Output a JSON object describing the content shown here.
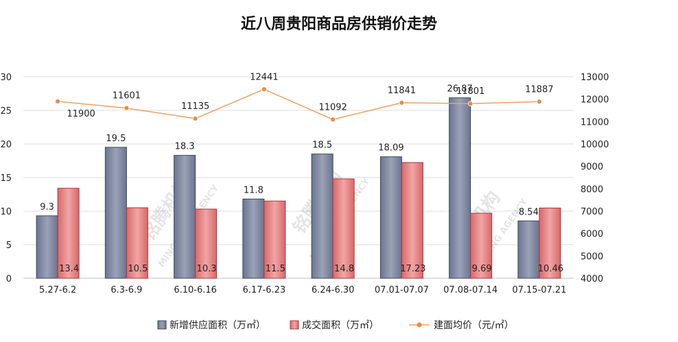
{
  "chart_data": {
    "type": "bar",
    "title": "近八周贵阳商品房供销价走势",
    "categories": [
      "5.27-6.2",
      "6.3-6.9",
      "6.10-6.16",
      "6.17-6.23",
      "6.24-6.30",
      "07.01-07.07",
      "07.08-07.14",
      "07.15-07.21"
    ],
    "y_left": {
      "min": 0,
      "max": 30,
      "ticks": [
        "0",
        "5",
        "10",
        "15",
        "20",
        "25",
        "30"
      ]
    },
    "y_right": {
      "min": 4000,
      "max": 13000,
      "ticks": [
        "4000",
        "5000",
        "6000",
        "7000",
        "8000",
        "9000",
        "10000",
        "11000",
        "12000",
        "13000"
      ]
    },
    "series": [
      {
        "name": "新增供应面积（万㎡）",
        "kind": "bar",
        "axis": "left",
        "color": "#8a93a8",
        "values": [
          9.3,
          19.5,
          18.3,
          11.8,
          18.5,
          18.09,
          26.87,
          8.54
        ],
        "labels": [
          "9.3",
          "19.5",
          "18.3",
          "11.8",
          "18.5",
          "18.09",
          "26.87",
          "8.54"
        ]
      },
      {
        "name": "成交面积（万㎡）",
        "kind": "bar",
        "axis": "left",
        "color": "#e07f80",
        "values": [
          13.4,
          10.5,
          10.3,
          11.5,
          14.8,
          17.23,
          9.69,
          10.46
        ],
        "labels": [
          "13.4",
          "10.5",
          "10.3",
          "11.5",
          "14.8",
          "17.23",
          "9.69",
          "10.46"
        ]
      },
      {
        "name": "建面均价（元/㎡）",
        "kind": "line",
        "axis": "right",
        "color": "#f0a060",
        "values": [
          11900,
          11601,
          11135,
          12441,
          11092,
          11841,
          11801,
          11887
        ],
        "labels": [
          "11900",
          "11601",
          "11135",
          "12441",
          "11092",
          "11841",
          "11801",
          "11887"
        ]
      }
    ],
    "legend_position": "bottom",
    "grid": true
  },
  "watermark": {
    "text_cn": "铭腾机构",
    "text_en": "MINGTENG AGENCY"
  }
}
